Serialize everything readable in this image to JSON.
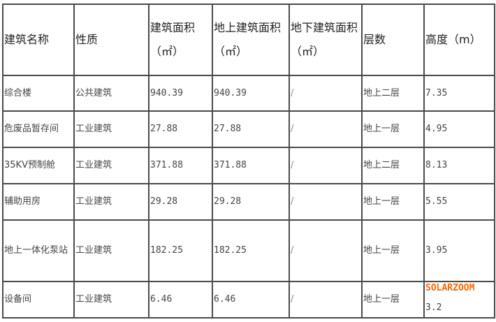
{
  "table": {
    "headers": [
      "建筑名称",
      "性质",
      "建筑面积（㎡）",
      "地上建筑面积（㎡）",
      "地下建筑面积（㎡）",
      "层数",
      "高度（m）"
    ],
    "rows": [
      [
        "综合楼",
        "公共建筑",
        "940.39",
        "940.39",
        "/",
        "地上二层",
        "7.35"
      ],
      [
        "危废品暂存间",
        "工业建筑",
        "27.88",
        "27.88",
        "/",
        "地上一层",
        "4.95"
      ],
      [
        "35KV预制舱",
        "工业建筑",
        "371.88",
        "371.88",
        "/",
        "地上二层",
        "8.13"
      ],
      [
        "辅助用房",
        "工业建筑",
        "29.28",
        "29.28",
        "/",
        "地上一层",
        "5.55"
      ],
      [
        "地上一体化泵站",
        "工业建筑",
        "182.25",
        "182.25",
        "/",
        "地上一层",
        "3.95"
      ],
      [
        "设备间",
        "工业建筑",
        "6.46",
        "6.46",
        "/",
        "地上一层",
        "3.2"
      ]
    ]
  },
  "watermark": "SOLARZOOM",
  "colors": {
    "border": "#4a4a4a",
    "watermark": "#ff6600"
  }
}
